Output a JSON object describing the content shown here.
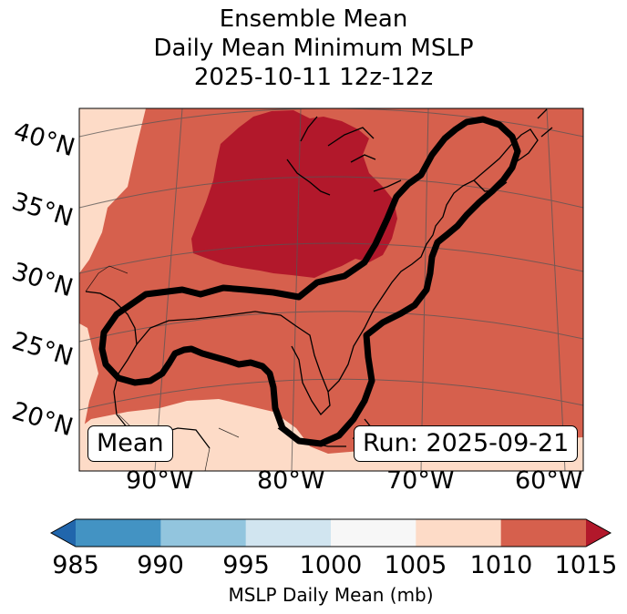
{
  "title": {
    "line1": "Ensemble Mean",
    "line2": "Daily Mean Minimum MSLP",
    "line3": "2025-10-11 12z-12z"
  },
  "map": {
    "lat_labels": [
      "40°N",
      "35°N",
      "30°N",
      "25°N",
      "20°N"
    ],
    "lon_labels": [
      "90°W",
      "80°W",
      "70°W",
      "60°W"
    ],
    "mean_label": "Mean",
    "run_label": "Run: 2025-09-21",
    "colors": {
      "c1000_1005": "#f7f7f7",
      "c1005_1010": "#fddbc7",
      "c1010_1015": "#d6604d",
      "c_gt1015": "#b2182b",
      "contour": "#000000"
    }
  },
  "colorbar": {
    "label": "MSLP Daily Mean (mb)",
    "ticks": [
      "985",
      "990",
      "995",
      "1000",
      "1005",
      "1010",
      "1015"
    ],
    "bins": [
      {
        "range": "<985",
        "color": "#2166ac"
      },
      {
        "range": "985-990",
        "color": "#4393c3"
      },
      {
        "range": "990-995",
        "color": "#92c5de"
      },
      {
        "range": "995-1000",
        "color": "#d1e5f0"
      },
      {
        "range": "1000-1005",
        "color": "#f7f7f7"
      },
      {
        "range": "1005-1010",
        "color": "#fddbc7"
      },
      {
        "range": "1010-1015",
        "color": "#d6604d"
      },
      {
        "range": ">1015",
        "color": "#b2182b"
      }
    ]
  }
}
